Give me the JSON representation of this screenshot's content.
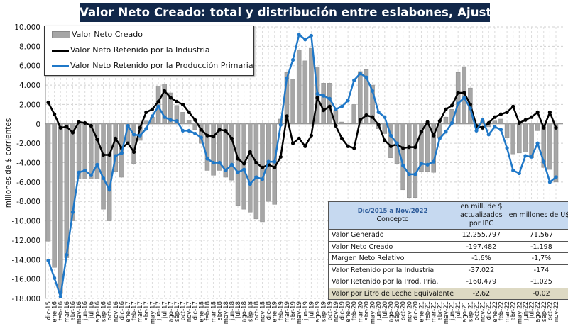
{
  "chart_data": {
    "type": "bar+line",
    "title": "Valor Neto Creado: total y distribución  entre eslabones, Ajustado  por IPC",
    "ylabel": "millones de $ corrientes",
    "xlabel": "",
    "ylim": [
      -18000,
      10000
    ],
    "yticks": [
      10000,
      8000,
      6000,
      4000,
      2000,
      0,
      -2000,
      -4000,
      -6000,
      -8000,
      -10000,
      -12000,
      -14000,
      -16000,
      -18000
    ],
    "ytick_labels": [
      "10.000",
      "8.000",
      "6.000",
      "4.000",
      "2.000",
      "0",
      "-2.000",
      "-4.000",
      "-6.000",
      "-8.000",
      "-10.000",
      "-12.000",
      "-14.000",
      "-16.000",
      "-18.000"
    ],
    "grid": true,
    "legend_placement": "top-left",
    "categories": [
      "dic-15",
      "ene-16",
      "feb-16",
      "mar-16",
      "abr-16",
      "may-16",
      "jun-16",
      "jul-16",
      "ago-16",
      "sep-16",
      "oct-16",
      "nov-16",
      "dic-16",
      "ene-17",
      "feb-17",
      "mar-17",
      "abr-17",
      "may-17",
      "jun-17",
      "jul-17",
      "ago-17",
      "sep-17",
      "oct-17",
      "nov-17",
      "dic-17",
      "ene-18",
      "feb-18",
      "mar-18",
      "abr-18",
      "may-18",
      "jun-18",
      "jul-18",
      "ago-18",
      "sep-18",
      "oct-18",
      "nov-18",
      "dic-18",
      "ene-19",
      "feb-19",
      "mar-19",
      "abr-19",
      "may-19",
      "jun-19",
      "jul-19",
      "ago-19",
      "sep-19",
      "oct-19",
      "nov-19",
      "dic-19",
      "ene-20",
      "feb-20",
      "mar-20",
      "abr-20",
      "may-20",
      "jun-20",
      "jul-20",
      "ago-20",
      "sep-20",
      "oct-20",
      "nov-20",
      "dic-20",
      "ene-21",
      "feb-21",
      "mar-21",
      "abr-21",
      "may-21",
      "jun-21",
      "jul-21",
      "ago-21",
      "sep-21",
      "oct-21",
      "nov-21",
      "dic-21",
      "ene-22",
      "feb-22",
      "mar-22",
      "abr-22",
      "may-22",
      "jun-22",
      "jul-22",
      "ago-22",
      "sep-22",
      "oct-22",
      "nov-22"
    ],
    "series": [
      {
        "name": "Valor Neto Creado",
        "type": "bar",
        "color": "#a6a6a6",
        "values": [
          -12100,
          -14800,
          -17500,
          -13800,
          -10000,
          -5700,
          -5700,
          -5700,
          -5700,
          -8800,
          -10000,
          -4900,
          -5500,
          -1900,
          -4100,
          -1700,
          300,
          700,
          3900,
          4100,
          3200,
          1900,
          1200,
          400,
          -600,
          -2000,
          -4800,
          -5300,
          -4800,
          -5500,
          -5800,
          -8400,
          -8800,
          -9100,
          -9800,
          -10100,
          -8000,
          -8300,
          500,
          5300,
          4600,
          7600,
          6500,
          7800,
          5800,
          4200,
          4200,
          1400,
          200,
          100,
          2000,
          5400,
          5600,
          4000,
          -500,
          -1000,
          -3500,
          -4100,
          -6800,
          -7600,
          -7600,
          -4900,
          -4900,
          -5000,
          -1400,
          700,
          1500,
          5300,
          5900,
          3700,
          -300,
          300,
          -300,
          300,
          500,
          -1400,
          -3100,
          -3000,
          -2900,
          -3500,
          -700,
          -4500,
          -4700,
          -6000
        ]
      },
      {
        "name": "Valor Neto Retenido por la Industria",
        "type": "line",
        "color": "#000000",
        "values": [
          2200,
          1000,
          -400,
          -300,
          -900,
          200,
          100,
          -200,
          -1600,
          -3200,
          -3200,
          -1500,
          -2500,
          -2000,
          -2900,
          -400,
          1200,
          1500,
          2300,
          3400,
          2700,
          2300,
          2000,
          1200,
          400,
          -600,
          -1200,
          -1300,
          -600,
          -700,
          -1500,
          -3600,
          -4100,
          -2900,
          -4000,
          -4500,
          -4200,
          -4500,
          -3400,
          800,
          -2000,
          -1500,
          -2300,
          -1200,
          2700,
          1400,
          1800,
          -200,
          -1500,
          -2300,
          -2500,
          400,
          900,
          700,
          -100,
          -1700,
          -2300,
          -2100,
          -2500,
          -2400,
          -2400,
          -800,
          200,
          -1200,
          300,
          1500,
          1900,
          3200,
          3200,
          2000,
          -200,
          -400,
          100,
          700,
          1000,
          1200,
          1800,
          100,
          400,
          700,
          1200,
          -400,
          1200,
          -400
        ]
      },
      {
        "name": "Valor Neto Retenido por la Producción Primaria",
        "type": "line",
        "color": "#1f78c8",
        "values": [
          -14100,
          -15900,
          -17800,
          -13500,
          -9100,
          -5000,
          -4800,
          -5300,
          -4200,
          -5600,
          -6800,
          -3300,
          -3000,
          -200,
          -1100,
          -1200,
          -500,
          800,
          1800,
          700,
          400,
          300,
          -700,
          -700,
          -1000,
          -1400,
          -3600,
          -4000,
          -4000,
          -4800,
          -4200,
          -5000,
          -4700,
          -6200,
          -5500,
          -5700,
          -3900,
          -3900,
          -100,
          4700,
          6600,
          9200,
          8700,
          9100,
          3100,
          2900,
          2600,
          1500,
          1800,
          2400,
          4500,
          5200,
          4800,
          3400,
          1200,
          700,
          -1200,
          -2000,
          -4300,
          -5200,
          -5200,
          -4100,
          -4200,
          -3900,
          -1500,
          -800,
          100,
          2100,
          2700,
          1600,
          -700,
          400,
          -1100,
          -300,
          -600,
          -2500,
          -4800,
          -5100,
          -3300,
          -3400,
          -2000,
          -3900,
          -6000,
          -5500
        ]
      }
    ]
  },
  "table": {
    "header": {
      "period": "Dic/2015 a Nov/2022",
      "concept": "Concepto",
      "col1": "en mill. de $ actualizados por IPC",
      "col2": "en millones de U$S"
    },
    "rows": [
      {
        "label": "Valor Generado",
        "v1": "12.255.797",
        "v2": "71.567"
      },
      {
        "label": "Valor Neto Creado",
        "v1": "-197.482",
        "v2": "-1.198"
      },
      {
        "label": "Margen Neto Relativo",
        "v1": "-1,6%",
        "v2": "-1,7%"
      },
      {
        "label": "Valor Retenido por la Industria",
        "v1": "-37.022",
        "v2": "-174"
      },
      {
        "label": "Valor Retenido por la Prod. Pria.",
        "v1": "-160.479",
        "v2": "-1.025"
      },
      {
        "label": "Valor por Litro de Leche Equivalente",
        "v1": "-2,62",
        "v2": "-0,02"
      }
    ]
  }
}
